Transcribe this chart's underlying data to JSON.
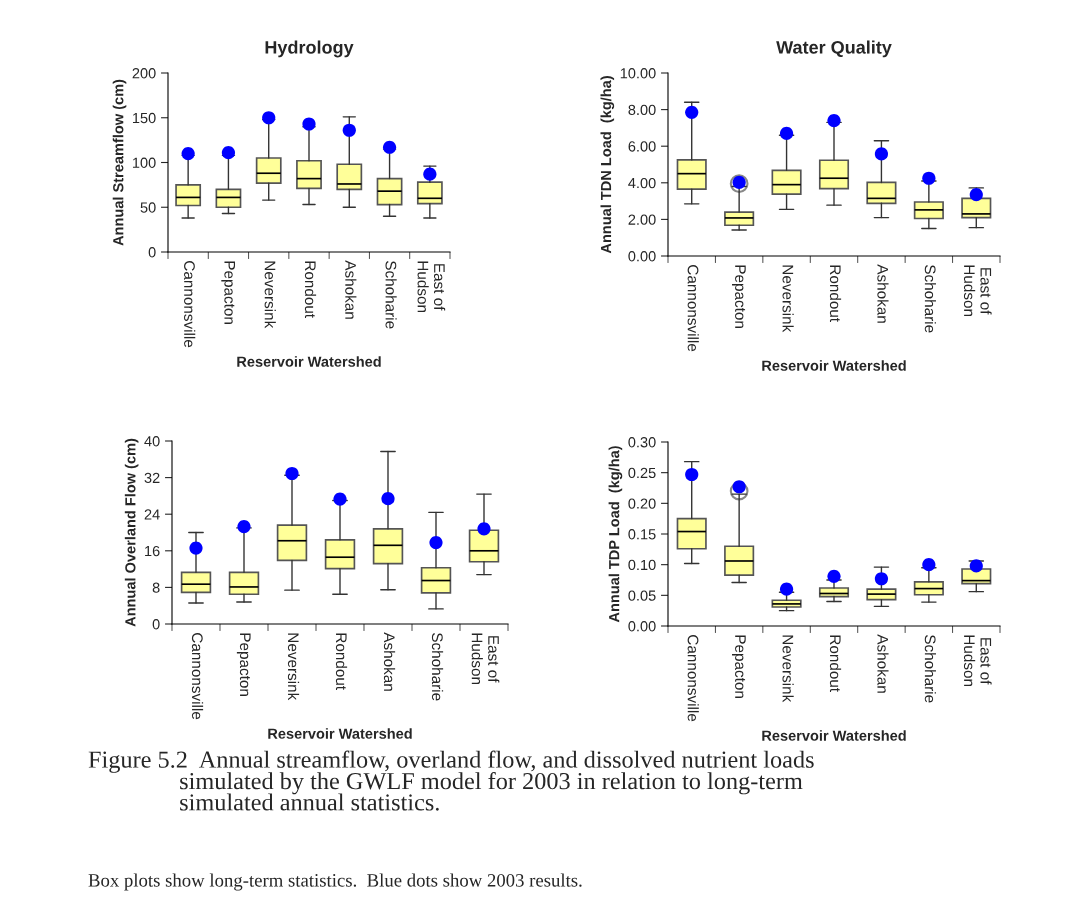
{
  "chart_data": [
    {
      "type": "box",
      "title": "Hydrology",
      "xlabel": "Reservoir Watershed",
      "ylabel": "Annual Streamflow (cm)",
      "categories": [
        "Cannonsville",
        "Pepacton",
        "Neversink",
        "Rondout",
        "Ashokan",
        "Schoharie",
        "East of\nHudson"
      ],
      "ylim": [
        0,
        200
      ],
      "yticks": [
        0,
        50,
        100,
        150,
        200
      ],
      "boxes": [
        {
          "low": 38,
          "q1": 52,
          "median": 61,
          "q3": 75,
          "high": 108
        },
        {
          "low": 43,
          "q1": 50,
          "median": 61,
          "q3": 70,
          "high": 108
        },
        {
          "low": 58,
          "q1": 77,
          "median": 88,
          "q3": 105,
          "high": 148
        },
        {
          "low": 53,
          "q1": 71,
          "median": 82,
          "q3": 102,
          "high": 140
        },
        {
          "low": 50,
          "q1": 70,
          "median": 76,
          "q3": 98,
          "high": 151
        },
        {
          "low": 40,
          "q1": 53,
          "median": 68,
          "q3": 82,
          "high": 115
        },
        {
          "low": 38,
          "q1": 54,
          "median": 60,
          "q3": 78,
          "high": 96
        }
      ],
      "series": [
        {
          "type": "scatter",
          "color": "#0000ff",
          "values": [
            110,
            111,
            150,
            143,
            136,
            117,
            87
          ]
        }
      ]
    },
    {
      "type": "box",
      "title": "Water Quality",
      "xlabel": "Reservoir Watershed",
      "ylabel": "Annual TDN Load  (kg/ha)",
      "categories": [
        "Cannonsville",
        "Pepacton",
        "Neversink",
        "Rondout",
        "Ashokan",
        "Schoharie",
        "East of\nHudson"
      ],
      "ylim": [
        0,
        10
      ],
      "yticks": [
        {
          "value": 0,
          "label": "0.00"
        },
        {
          "value": 2,
          "label": "2.00"
        },
        {
          "value": 4,
          "label": "4.00"
        },
        {
          "value": 6,
          "label": "6.00"
        },
        {
          "value": 8,
          "label": "8.00"
        },
        {
          "value": 10,
          "label": "10.00"
        }
      ],
      "boxes": [
        {
          "low": 2.85,
          "q1": 3.65,
          "median": 4.5,
          "q3": 5.25,
          "high": 8.4
        },
        {
          "low": 1.42,
          "q1": 1.68,
          "median": 2.08,
          "q3": 2.4,
          "high": 3.8,
          "outliers": [
            3.95
          ]
        },
        {
          "low": 2.55,
          "q1": 3.38,
          "median": 3.9,
          "q3": 4.68,
          "high": 6.6
        },
        {
          "low": 2.78,
          "q1": 3.68,
          "median": 4.25,
          "q3": 5.23,
          "high": 7.3
        },
        {
          "low": 2.1,
          "q1": 2.88,
          "median": 3.15,
          "q3": 4.02,
          "high": 6.3
        },
        {
          "low": 1.5,
          "q1": 2.05,
          "median": 2.52,
          "q3": 2.95,
          "high": 4.1
        },
        {
          "low": 1.55,
          "q1": 2.1,
          "median": 2.3,
          "q3": 3.15,
          "high": 3.72
        }
      ],
      "series": [
        {
          "type": "scatter",
          "color": "#0000ff",
          "values": [
            7.85,
            4.02,
            6.7,
            7.4,
            5.58,
            4.25,
            3.35
          ]
        }
      ]
    },
    {
      "type": "box",
      "xlabel": "Reservoir Watershed",
      "ylabel": "Annual Overland Flow (cm)",
      "categories": [
        "Cannonsville",
        "Pepacton",
        "Neversink",
        "Rondout",
        "Ashokan",
        "Schoharie",
        "East of\nHudson"
      ],
      "ylim": [
        0,
        40
      ],
      "yticks": [
        0,
        8,
        16,
        24,
        32,
        40
      ],
      "boxes": [
        {
          "low": 4.6,
          "q1": 6.9,
          "median": 8.7,
          "q3": 11.3,
          "high": 20
        },
        {
          "low": 4.8,
          "q1": 6.5,
          "median": 8.1,
          "q3": 11.3,
          "high": 21
        },
        {
          "low": 7.4,
          "q1": 13.9,
          "median": 18.2,
          "q3": 21.6,
          "high": 32.5
        },
        {
          "low": 6.5,
          "q1": 12.1,
          "median": 14.6,
          "q3": 18.4,
          "high": 27
        },
        {
          "low": 7.5,
          "q1": 13.2,
          "median": 17.2,
          "q3": 20.8,
          "high": 37.7
        },
        {
          "low": 3.3,
          "q1": 6.8,
          "median": 9.5,
          "q3": 12.3,
          "high": 24.4
        },
        {
          "low": 10.8,
          "q1": 13.6,
          "median": 16.0,
          "q3": 20.5,
          "high": 28.4
        }
      ],
      "series": [
        {
          "type": "scatter",
          "color": "#0000ff",
          "values": [
            16.6,
            21.3,
            32.9,
            27.3,
            27.4,
            17.8,
            20.8
          ]
        }
      ]
    },
    {
      "type": "box",
      "xlabel": "Reservoir Watershed",
      "ylabel": "Annual TDP Load  (kg/ha)",
      "categories": [
        "Cannonsville",
        "Pepacton",
        "Neversink",
        "Rondout",
        "Ashokan",
        "Schoharie",
        "East of\nHudson"
      ],
      "ylim": [
        0,
        0.3
      ],
      "yticks": [
        {
          "value": 0,
          "label": "0.00"
        },
        {
          "value": 0.05,
          "label": "0.05"
        },
        {
          "value": 0.1,
          "label": "0.10"
        },
        {
          "value": 0.15,
          "label": "0.15"
        },
        {
          "value": 0.2,
          "label": "0.20"
        },
        {
          "value": 0.25,
          "label": "0.25"
        },
        {
          "value": 0.3,
          "label": "0.30"
        }
      ],
      "boxes": [
        {
          "low": 0.102,
          "q1": 0.126,
          "median": 0.154,
          "q3": 0.175,
          "high": 0.268
        },
        {
          "low": 0.071,
          "q1": 0.083,
          "median": 0.106,
          "q3": 0.13,
          "high": 0.215,
          "outliers": [
            0.22
          ]
        },
        {
          "low": 0.025,
          "q1": 0.031,
          "median": 0.036,
          "q3": 0.042,
          "high": 0.055
        },
        {
          "low": 0.04,
          "q1": 0.048,
          "median": 0.053,
          "q3": 0.062,
          "high": 0.075
        },
        {
          "low": 0.032,
          "q1": 0.043,
          "median": 0.052,
          "q3": 0.06,
          "high": 0.096
        },
        {
          "low": 0.039,
          "q1": 0.051,
          "median": 0.061,
          "q3": 0.072,
          "high": 0.095
        },
        {
          "low": 0.056,
          "q1": 0.069,
          "median": 0.074,
          "q3": 0.093,
          "high": 0.106
        }
      ],
      "series": [
        {
          "type": "scatter",
          "color": "#0000ff",
          "values": [
            0.247,
            0.227,
            0.06,
            0.081,
            0.077,
            0.1,
            0.098
          ]
        }
      ],
      "annotations": [
        "Figure 5.2  Annual streamflow, overland flow, and dissolved nutrient loads\n               simulated by the GWLF model for 2003 in relation to long-term\n               simulated annual statistics.",
        "Box plots show long-term statistics.  Blue dots show 2003 results."
      ]
    }
  ]
}
